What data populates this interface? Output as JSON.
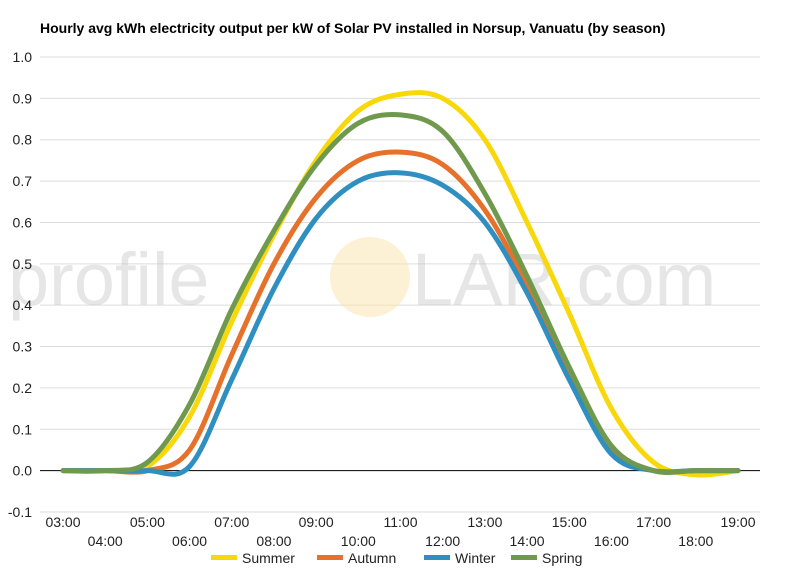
{
  "chart_data": {
    "type": "line",
    "title": "Hourly avg kWh electricity output per kW of Solar PV installed in Norsup, Vanuatu (by season)",
    "xlabel": "",
    "ylabel": "",
    "ylim": [
      -0.1,
      1.0
    ],
    "yticks": [
      "-0.1",
      "0.0",
      "0.1",
      "0.2",
      "0.3",
      "0.4",
      "0.5",
      "0.6",
      "0.7",
      "0.8",
      "0.9",
      "1.0"
    ],
    "x": [
      "03:00",
      "04:00",
      "05:00",
      "06:00",
      "07:00",
      "08:00",
      "09:00",
      "10:00",
      "11:00",
      "12:00",
      "13:00",
      "14:00",
      "15:00",
      "16:00",
      "17:00",
      "18:00",
      "19:00"
    ],
    "grid": true,
    "legend": "bottom",
    "series": [
      {
        "name": "Summer",
        "color": "#f8d80a",
        "values": [
          0.0,
          0.0,
          0.01,
          0.13,
          0.36,
          0.57,
          0.75,
          0.87,
          0.91,
          0.9,
          0.8,
          0.6,
          0.38,
          0.15,
          0.02,
          -0.01,
          0.0
        ]
      },
      {
        "name": "Autumn",
        "color": "#e5712a",
        "values": [
          0.0,
          0.0,
          0.0,
          0.05,
          0.28,
          0.5,
          0.66,
          0.75,
          0.77,
          0.74,
          0.63,
          0.45,
          0.24,
          0.05,
          0.0,
          0.0,
          0.0
        ]
      },
      {
        "name": "Winter",
        "color": "#2f8fc0",
        "values": [
          0.0,
          0.0,
          0.0,
          0.01,
          0.22,
          0.44,
          0.61,
          0.7,
          0.72,
          0.69,
          0.6,
          0.43,
          0.22,
          0.04,
          0.0,
          0.0,
          0.0
        ]
      },
      {
        "name": "Spring",
        "color": "#6f9a4d",
        "values": [
          0.0,
          0.0,
          0.02,
          0.16,
          0.39,
          0.58,
          0.74,
          0.84,
          0.86,
          0.82,
          0.67,
          0.47,
          0.25,
          0.06,
          0.0,
          0.0,
          0.0
        ]
      }
    ],
    "watermark": {
      "left": "profile",
      "right": "LAR.com"
    }
  }
}
